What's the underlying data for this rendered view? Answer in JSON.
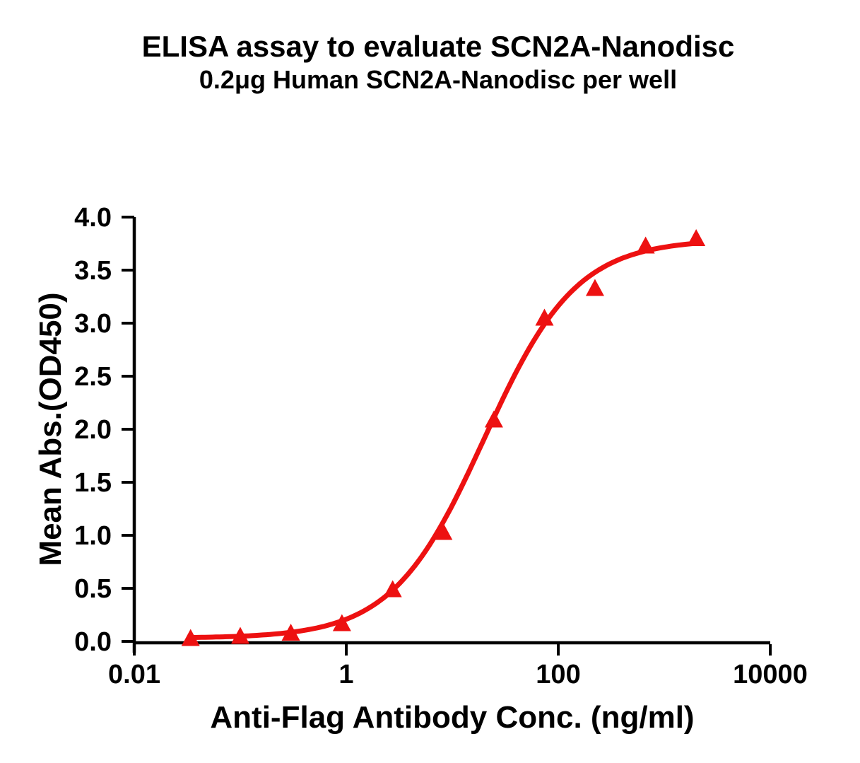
{
  "figure": {
    "title": "ELISA assay to evaluate SCN2A-Nanodisc",
    "subtitle": "0.2μg Human SCN2A-Nanodisc per well"
  },
  "colors": {
    "curve": "#ED1111",
    "axis": "#000000",
    "text": "#000000"
  },
  "chart_data": {
    "type": "line",
    "title": "ELISA assay to evaluate SCN2A-Nanodisc",
    "subtitle": "0.2μg Human SCN2A-Nanodisc per well",
    "xlabel": "Anti-Flag Antibody Conc. (ng/ml)",
    "ylabel": "Mean Abs.(OD450)",
    "x_scale": "log10",
    "xlim": [
      0.01,
      10000
    ],
    "ylim": [
      0.0,
      4.0
    ],
    "x_ticks": [
      0.01,
      1,
      100,
      10000
    ],
    "x_tick_labels": [
      "0.01",
      "1",
      "100",
      "10000"
    ],
    "y_ticks": [
      0.0,
      0.5,
      1.0,
      1.5,
      2.0,
      2.5,
      3.0,
      3.5,
      4.0
    ],
    "y_tick_labels": [
      "0.0",
      "0.5",
      "1.0",
      "1.5",
      "2.0",
      "2.5",
      "3.0",
      "3.5",
      "4.0"
    ],
    "grid": false,
    "legend_position": "none",
    "series": [
      {
        "marker": "triangle-up",
        "color": "#ED1111",
        "points": [
          {
            "x": 0.034,
            "y": 0.03
          },
          {
            "x": 0.1,
            "y": 0.05
          },
          {
            "x": 0.3,
            "y": 0.08
          },
          {
            "x": 0.91,
            "y": 0.17
          },
          {
            "x": 2.74,
            "y": 0.49
          },
          {
            "x": 8.23,
            "y": 1.03
          },
          {
            "x": 24.7,
            "y": 2.09
          },
          {
            "x": 74.1,
            "y": 3.05
          },
          {
            "x": 222,
            "y": 3.33
          },
          {
            "x": 667,
            "y": 3.73
          },
          {
            "x": 2000,
            "y": 3.8
          }
        ]
      }
    ],
    "curve_fit": {
      "model": "4PL",
      "bottom": 0.03,
      "top": 3.79,
      "ec50": 20,
      "hill": 1.0
    }
  }
}
